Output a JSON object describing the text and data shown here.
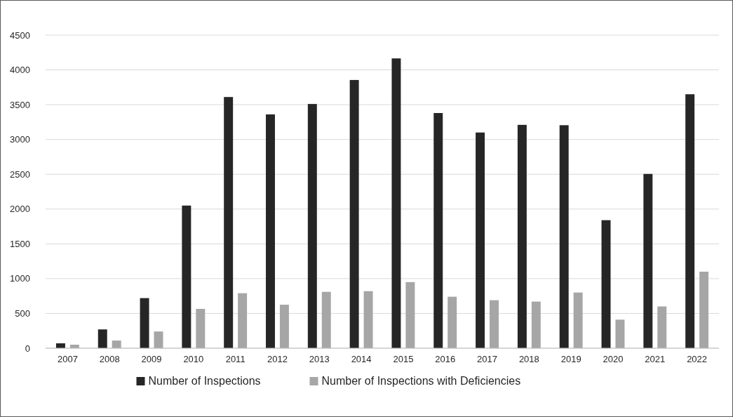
{
  "chart_data": {
    "type": "bar",
    "categories": [
      "2007",
      "2008",
      "2009",
      "2010",
      "2011",
      "2012",
      "2013",
      "2014",
      "2015",
      "2016",
      "2017",
      "2018",
      "2019",
      "2020",
      "2021",
      "2022"
    ],
    "series": [
      {
        "name": "Number of Inspections",
        "color": "#262626",
        "values": [
          70,
          270,
          720,
          2050,
          3610,
          3360,
          3510,
          3855,
          4165,
          3380,
          3100,
          3210,
          3205,
          1840,
          2505,
          3650
        ]
      },
      {
        "name": "Number of Inspections with Deficiencies",
        "color": "#a6a6a6",
        "values": [
          50,
          110,
          240,
          565,
          790,
          625,
          810,
          820,
          950,
          740,
          690,
          670,
          800,
          410,
          600,
          1100
        ]
      }
    ],
    "ylim": [
      0,
      4500
    ],
    "yticks": [
      0,
      500,
      1000,
      1500,
      2000,
      2500,
      3000,
      3500,
      4000,
      4500
    ],
    "grid": "y",
    "legend": "bottom"
  }
}
